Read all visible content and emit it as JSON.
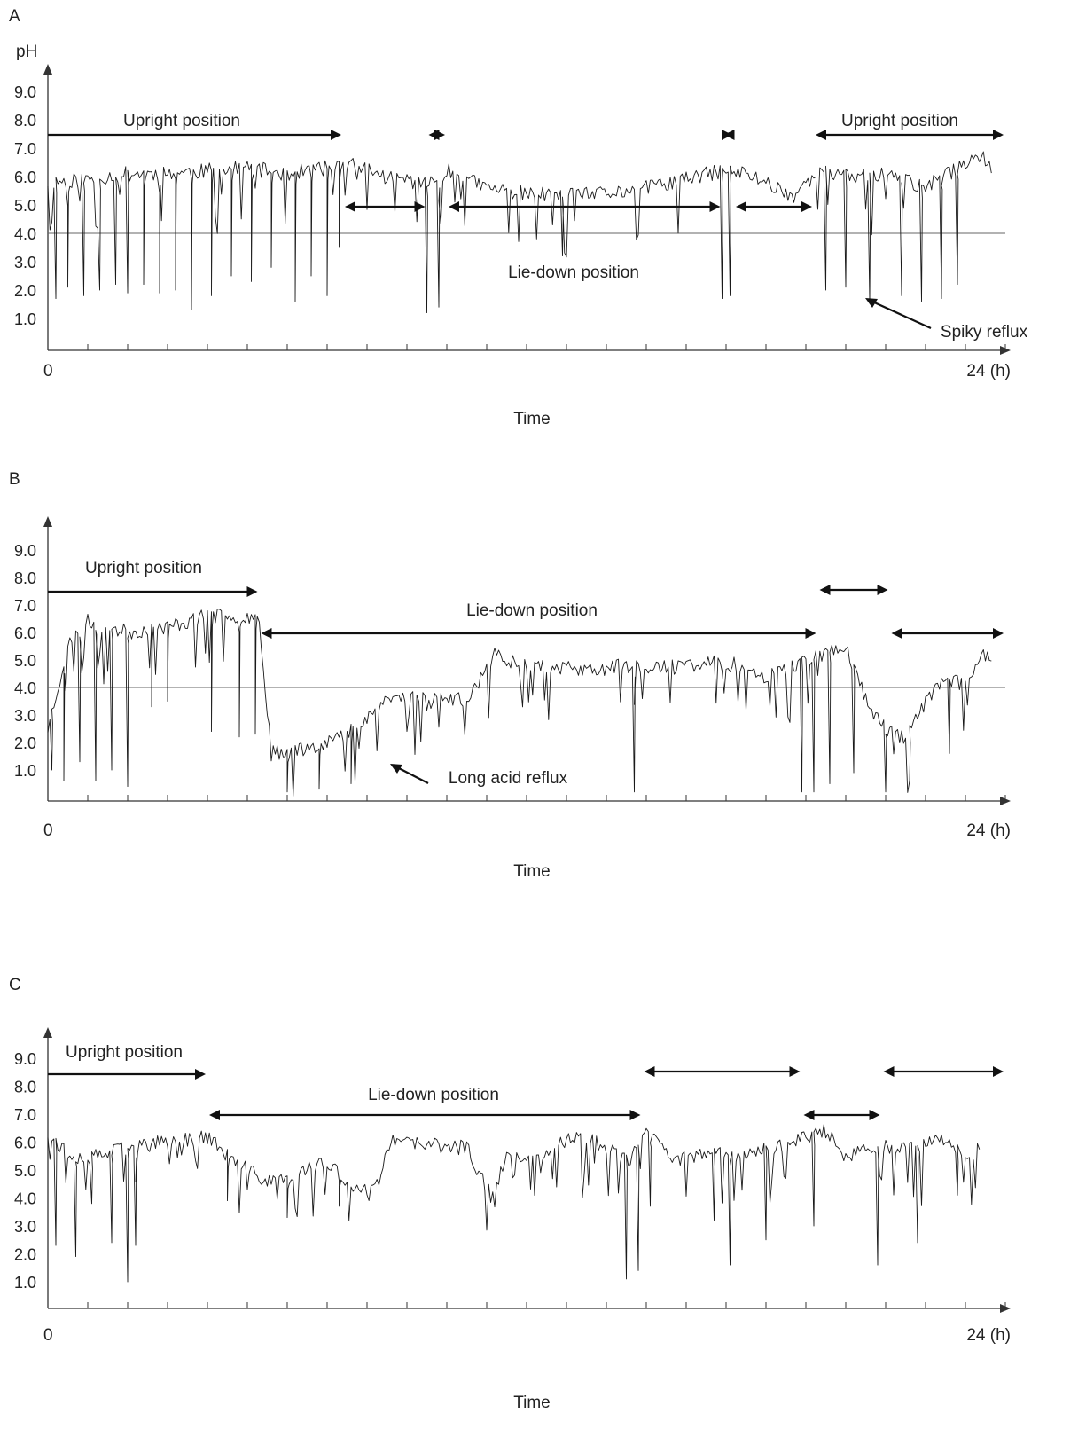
{
  "chart_data": [
    {
      "panel": "A",
      "type": "line",
      "y_axis_label": "pH",
      "x_axis_label": "Time",
      "x_start_label": "0",
      "x_end_label": "24 (h)",
      "x_unit": "h",
      "xlim": [
        0,
        24
      ],
      "ylim": [
        0,
        9.5
      ],
      "y_ticks": [
        "9.0",
        "8.0",
        "7.0",
        "6.0",
        "5.0",
        "4.0",
        "3.0",
        "2.0",
        "1.0"
      ],
      "reference_line_pH": 4.0,
      "annotations": [
        {
          "text": "Upright position",
          "span_h": [
            0,
            7.4
          ]
        },
        {
          "text": "",
          "span_h": [
            9.5,
            10.0
          ]
        },
        {
          "text": "",
          "span_h": [
            16.9,
            17.2
          ]
        },
        {
          "text": "Upright position",
          "span_h": [
            19.2,
            24
          ]
        },
        {
          "text": "",
          "span_h": [
            7.4,
            9.5
          ]
        },
        {
          "text": "Lie-down position",
          "span_h": [
            10.0,
            16.9
          ]
        },
        {
          "text": "",
          "span_h": [
            17.2,
            19.2
          ]
        },
        {
          "text": "Spiky reflux",
          "type": "pointer"
        }
      ],
      "baseline": [
        [
          0,
          5.8
        ],
        [
          1,
          5.9
        ],
        [
          2,
          6.1
        ],
        [
          3,
          6.1
        ],
        [
          4,
          6.2
        ],
        [
          5,
          6.3
        ],
        [
          6,
          6.1
        ],
        [
          7,
          6.3
        ],
        [
          7.8,
          6.4
        ],
        [
          8.4,
          6.0
        ],
        [
          9,
          5.9
        ],
        [
          9.5,
          5.7
        ],
        [
          10,
          6.2
        ],
        [
          11,
          5.6
        ],
        [
          12,
          5.4
        ],
        [
          13,
          5.3
        ],
        [
          14,
          5.4
        ],
        [
          15,
          5.6
        ],
        [
          16,
          5.9
        ],
        [
          16.9,
          6.2
        ],
        [
          17.5,
          6.1
        ],
        [
          18,
          5.8
        ],
        [
          18.7,
          5.3
        ],
        [
          19.2,
          6.2
        ],
        [
          20,
          6.0
        ],
        [
          21,
          6.1
        ],
        [
          22,
          5.6
        ],
        [
          22.7,
          6.2
        ],
        [
          23.3,
          6.8
        ],
        [
          23.7,
          6.3
        ]
      ],
      "acid_dips": [
        [
          0.2,
          1.7
        ],
        [
          0.5,
          2.1
        ],
        [
          0.9,
          1.8
        ],
        [
          1.3,
          2.0
        ],
        [
          1.7,
          2.2
        ],
        [
          2.0,
          1.9
        ],
        [
          2.4,
          2.2
        ],
        [
          2.8,
          1.9
        ],
        [
          3.2,
          2.0
        ],
        [
          3.6,
          1.3
        ],
        [
          4.1,
          1.8
        ],
        [
          4.6,
          2.5
        ],
        [
          5.1,
          2.3
        ],
        [
          5.6,
          2.8
        ],
        [
          6.2,
          1.6
        ],
        [
          6.6,
          2.5
        ],
        [
          7.0,
          1.8
        ],
        [
          7.3,
          3.5
        ],
        [
          9.5,
          1.2
        ],
        [
          9.8,
          1.4
        ],
        [
          12.9,
          3.2
        ],
        [
          16.9,
          1.7
        ],
        [
          17.1,
          1.8
        ],
        [
          19.5,
          2.0
        ],
        [
          20.0,
          2.1
        ],
        [
          20.6,
          1.6
        ],
        [
          21.4,
          1.8
        ],
        [
          21.9,
          1.6
        ],
        [
          22.4,
          1.7
        ],
        [
          22.8,
          2.2
        ]
      ]
    },
    {
      "panel": "B",
      "type": "line",
      "x_axis_label": "Time",
      "x_start_label": "0",
      "x_end_label": "24 (h)",
      "x_unit": "h",
      "xlim": [
        0,
        24
      ],
      "ylim": [
        0,
        9.5
      ],
      "y_ticks": [
        "9.0",
        "8.0",
        "7.0",
        "6.0",
        "5.0",
        "4.0",
        "3.0",
        "2.0",
        "1.0"
      ],
      "reference_line_pH": 4.0,
      "annotations": [
        {
          "text": "Upright position",
          "span_h": [
            0,
            5.3
          ]
        },
        {
          "text": "Lie-down position",
          "span_h": [
            5.3,
            19.3
          ]
        },
        {
          "text": "",
          "span_h": [
            19.3,
            21.1
          ]
        },
        {
          "text": "",
          "span_h": [
            21.1,
            24
          ]
        },
        {
          "text": "Long acid reflux",
          "type": "pointer"
        }
      ],
      "baseline": [
        [
          0,
          2.5
        ],
        [
          0.5,
          5.5
        ],
        [
          1,
          6.4
        ],
        [
          2,
          6.0
        ],
        [
          3,
          6.2
        ],
        [
          4,
          6.6
        ],
        [
          5,
          6.6
        ],
        [
          5.3,
          6.5
        ],
        [
          5.6,
          1.6
        ],
        [
          6.5,
          1.8
        ],
        [
          7.5,
          2.3
        ],
        [
          8.5,
          3.6
        ],
        [
          9.5,
          3.7
        ],
        [
          10.5,
          3.5
        ],
        [
          11.2,
          5.2
        ],
        [
          11.5,
          5.0
        ],
        [
          12.5,
          4.8
        ],
        [
          13.5,
          4.6
        ],
        [
          14.5,
          4.8
        ],
        [
          15.5,
          4.7
        ],
        [
          16.5,
          4.9
        ],
        [
          17.5,
          4.8
        ],
        [
          18,
          4.4
        ],
        [
          19,
          5.0
        ],
        [
          20,
          5.5
        ],
        [
          20.6,
          3.2
        ],
        [
          21.1,
          2.4
        ],
        [
          21.5,
          2.1
        ],
        [
          22,
          3.5
        ],
        [
          22.5,
          4.4
        ],
        [
          23,
          4.0
        ],
        [
          23.4,
          5.3
        ],
        [
          23.7,
          5.0
        ]
      ],
      "acid_dips": [
        [
          0.1,
          1.0
        ],
        [
          0.4,
          0.6
        ],
        [
          0.8,
          1.3
        ],
        [
          1.2,
          0.6
        ],
        [
          1.6,
          1.0
        ],
        [
          2.0,
          0.4
        ],
        [
          2.6,
          3.3
        ],
        [
          3.0,
          3.5
        ],
        [
          4.1,
          2.4
        ],
        [
          4.8,
          2.2
        ],
        [
          5.2,
          2.3
        ],
        [
          6.0,
          0.2
        ],
        [
          6.8,
          0.3
        ],
        [
          7.6,
          0.5
        ],
        [
          14.7,
          0.2
        ],
        [
          18.9,
          0.2
        ],
        [
          19.2,
          0.2
        ],
        [
          19.6,
          0.5
        ],
        [
          20.2,
          0.9
        ],
        [
          21.0,
          0.2
        ],
        [
          21.6,
          0.6
        ],
        [
          22.6,
          1.6
        ]
      ]
    },
    {
      "panel": "C",
      "type": "line",
      "x_axis_label": "Time",
      "x_start_label": "0",
      "x_end_label": "24 (h)",
      "x_unit": "h",
      "xlim": [
        0,
        24
      ],
      "ylim": [
        0,
        9.5
      ],
      "y_ticks": [
        "9.0",
        "8.0",
        "7.0",
        "6.0",
        "5.0",
        "4.0",
        "3.0",
        "2.0",
        "1.0"
      ],
      "reference_line_pH": 4.0,
      "annotations": [
        {
          "text": "Upright position",
          "span_h": [
            0,
            4.0
          ]
        },
        {
          "text": "Lie-down position",
          "span_h": [
            4.0,
            14.9
          ]
        },
        {
          "text": "",
          "span_h": [
            14.9,
            18.9
          ]
        },
        {
          "text": "",
          "span_h": [
            18.9,
            20.9
          ]
        },
        {
          "text": "",
          "span_h": [
            20.9,
            24
          ]
        }
      ],
      "baseline": [
        [
          0,
          6.3
        ],
        [
          0.5,
          5.6
        ],
        [
          1,
          5.4
        ],
        [
          2,
          5.8
        ],
        [
          3,
          6.0
        ],
        [
          4,
          6.2
        ],
        [
          4.5,
          5.5
        ],
        [
          5,
          5.0
        ],
        [
          5.5,
          4.6
        ],
        [
          6.2,
          4.8
        ],
        [
          7,
          5.3
        ],
        [
          7.5,
          4.5
        ],
        [
          8.2,
          4.3
        ],
        [
          8.6,
          6.0
        ],
        [
          9.5,
          5.9
        ],
        [
          10.5,
          5.8
        ],
        [
          11.1,
          4.1
        ],
        [
          11.5,
          5.4
        ],
        [
          12.5,
          5.6
        ],
        [
          13.3,
          6.3
        ],
        [
          14,
          5.8
        ],
        [
          14.6,
          5.3
        ],
        [
          15,
          6.4
        ],
        [
          15.6,
          5.4
        ],
        [
          16.5,
          5.5
        ],
        [
          17.5,
          5.6
        ],
        [
          18.5,
          5.9
        ],
        [
          19,
          6.2
        ],
        [
          19.5,
          6.4
        ],
        [
          20,
          5.5
        ],
        [
          21,
          5.8
        ],
        [
          22,
          5.9
        ],
        [
          22.5,
          6.1
        ],
        [
          23,
          5.4
        ],
        [
          23.4,
          5.8
        ]
      ],
      "acid_dips": [
        [
          0.2,
          2.3
        ],
        [
          0.7,
          1.9
        ],
        [
          1.1,
          3.8
        ],
        [
          1.6,
          2.4
        ],
        [
          2.0,
          1.0
        ],
        [
          2.2,
          2.3
        ],
        [
          4.5,
          3.9
        ],
        [
          6.0,
          3.3
        ],
        [
          7.3,
          3.7
        ],
        [
          14.5,
          1.1
        ],
        [
          14.8,
          1.4
        ],
        [
          15.1,
          3.7
        ],
        [
          16.7,
          3.2
        ],
        [
          17.1,
          1.6
        ],
        [
          18.0,
          2.5
        ],
        [
          19.2,
          3.0
        ],
        [
          20.8,
          1.6
        ],
        [
          21.8,
          2.4
        ],
        [
          22.8,
          4.1
        ]
      ]
    }
  ]
}
